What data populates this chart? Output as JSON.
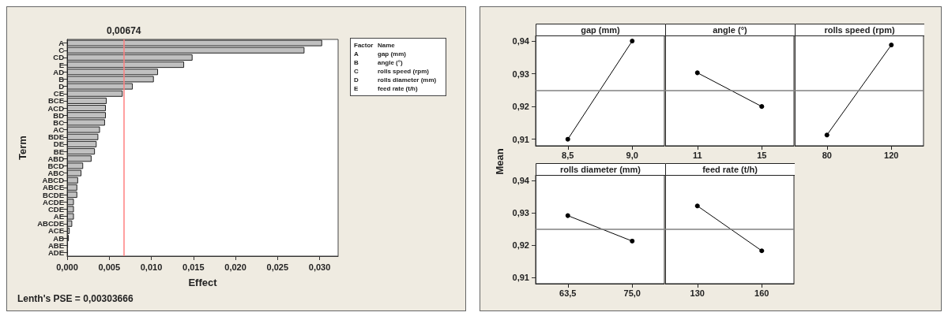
{
  "chart_data": [
    {
      "type": "bar",
      "orientation": "horizontal",
      "categories": [
        "A",
        "C",
        "CD",
        "E",
        "AD",
        "B",
        "D",
        "CE",
        "BCE",
        "ACD",
        "BD",
        "BC",
        "AC",
        "BDE",
        "DE",
        "BE",
        "ABD",
        "BCD",
        "ABC",
        "ABCD",
        "ABCE",
        "BCDE",
        "ACDE",
        "CDE",
        "AE",
        "ABCDE",
        "ACE",
        "AB",
        "ABE",
        "ADE"
      ],
      "values": [
        0.0303,
        0.0282,
        0.0149,
        0.0139,
        0.0108,
        0.0103,
        0.0078,
        0.0066,
        0.0047,
        0.0046,
        0.0046,
        0.0045,
        0.0039,
        0.0037,
        0.0035,
        0.0033,
        0.0029,
        0.0019,
        0.0017,
        0.0013,
        0.0012,
        0.0012,
        0.0008,
        0.0008,
        0.0008,
        0.0006,
        0.0003,
        0.0002,
        0.0001,
        0.0001
      ],
      "color": "#c0c0c0",
      "xlabel": "Effect",
      "ylabel": "Term",
      "xlim": [
        0,
        0.0322
      ],
      "xticks": [
        {
          "value": 0,
          "label": "0,000"
        },
        {
          "value": 0.005,
          "label": "0,005"
        },
        {
          "value": 0.01,
          "label": "0,010"
        },
        {
          "value": 0.015,
          "label": "0,015"
        },
        {
          "value": 0.02,
          "label": "0,020"
        },
        {
          "value": 0.025,
          "label": "0,025"
        },
        {
          "value": 0.03,
          "label": "0,030"
        }
      ],
      "ref_lines": [
        {
          "axis": "x",
          "value": 0.00674,
          "label": "0,00674",
          "color": "#ff8080"
        }
      ],
      "grid": false,
      "annotations": [
        "Factor\tName",
        "A\tgap (mm)",
        "B\tangle (°)",
        "C\trolls speed (rpm)",
        "D\trolls diameter (mm)",
        "E\tfeed rate (t/h)",
        "Lenth's PSE = 0,00303666"
      ]
    },
    {
      "type": "line",
      "title": "gap (mm)",
      "ylabel": "Mean",
      "categories": [
        "8,5",
        "9,0"
      ],
      "values": [
        0.91,
        0.94
      ],
      "color": "#000000",
      "marker": "circle",
      "line_style": "solid",
      "ylim": [
        0.908,
        0.9417
      ],
      "yticks": [
        {
          "value": 0.91,
          "label": "0,91"
        },
        {
          "value": 0.92,
          "label": "0,92"
        },
        {
          "value": 0.93,
          "label": "0,93"
        },
        {
          "value": 0.94,
          "label": "0,94"
        }
      ],
      "ref_lines": [
        {
          "axis": "y",
          "value": 0.925,
          "color": "#808080"
        }
      ],
      "grid": false
    },
    {
      "type": "line",
      "title": "angle (°)",
      "categories": [
        "11",
        "15"
      ],
      "values": [
        0.9303,
        0.92
      ],
      "color": "#000000",
      "marker": "circle",
      "line_style": "solid",
      "ylim": [
        0.908,
        0.9417
      ],
      "tick_labels": "x",
      "ref_lines": [
        {
          "axis": "y",
          "value": 0.925,
          "color": "#808080"
        }
      ],
      "grid": false
    },
    {
      "type": "line",
      "title": "rolls speed (rpm)",
      "categories": [
        "80",
        "120"
      ],
      "values": [
        0.9113,
        0.9388
      ],
      "color": "#000000",
      "marker": "circle",
      "line_style": "solid",
      "ylim": [
        0.908,
        0.9417
      ],
      "tick_labels": "x",
      "ref_lines": [
        {
          "axis": "y",
          "value": 0.925,
          "color": "#808080"
        }
      ],
      "grid": false
    },
    {
      "type": "line",
      "title": "rolls diameter (mm)",
      "categories": [
        "63,5",
        "75,0"
      ],
      "values": [
        0.9291,
        0.9212
      ],
      "color": "#000000",
      "marker": "circle",
      "line_style": "solid",
      "ylim": [
        0.908,
        0.9417
      ],
      "yticks": [
        {
          "value": 0.91,
          "label": "0,91"
        },
        {
          "value": 0.92,
          "label": "0,92"
        },
        {
          "value": 0.93,
          "label": "0,93"
        },
        {
          "value": 0.94,
          "label": "0,94"
        }
      ],
      "ref_lines": [
        {
          "axis": "y",
          "value": 0.925,
          "color": "#808080"
        }
      ],
      "grid": false
    },
    {
      "type": "line",
      "title": "feed rate (t/h)",
      "categories": [
        "130",
        "160"
      ],
      "values": [
        0.9321,
        0.9182
      ],
      "color": "#000000",
      "marker": "circle",
      "line_style": "solid",
      "ylim": [
        0.908,
        0.9417
      ],
      "tick_labels": "x",
      "ref_lines": [
        {
          "axis": "y",
          "value": 0.925,
          "color": "#808080"
        }
      ],
      "grid": false
    }
  ]
}
